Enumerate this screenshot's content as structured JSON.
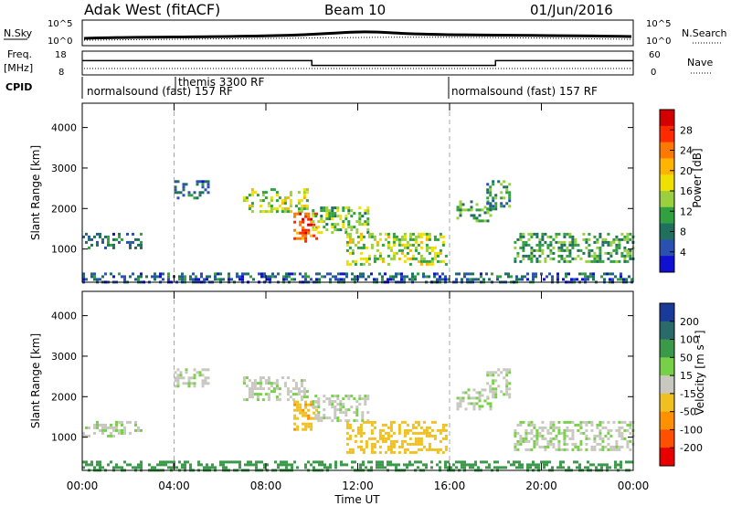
{
  "chart_data": {
    "type": "heatmap",
    "header": {
      "title": "Adak West (fitACF)",
      "beam": "Beam 10",
      "date": "01/Jun/2016"
    },
    "status_panels": {
      "nsky_label": "N.Sky",
      "nsky_ticks": [
        "10^5",
        "10^0"
      ],
      "nsearch_label": "N.Search",
      "freq_label": "Freq.",
      "freq_unit": "[MHz]",
      "freq_ticks": [
        "18",
        "8"
      ],
      "nave_label": "Nave",
      "nave_ticks": [
        "60",
        "0"
      ],
      "cpid_label": "CPID",
      "freq_steps": [
        {
          "from": 0.0,
          "to": 10.0,
          "freq": 14.0
        },
        {
          "from": 10.0,
          "to": 18.0,
          "freq": 12.0
        },
        {
          "from": 18.0,
          "to": 24.0,
          "freq": 14.0
        }
      ],
      "cpid_segments": [
        {
          "from": 0.0,
          "to": 16.0,
          "label": "normalsound (fast) 157 RF"
        },
        {
          "from": 4.0,
          "to": 16.0,
          "label": "themis 3300 RF"
        },
        {
          "from": 16.0,
          "to": 24.0,
          "label": "normalsound (fast) 157 RF"
        }
      ]
    },
    "x": {
      "label": "Time UT",
      "range": [
        0,
        24
      ],
      "tick_values": [
        0,
        4,
        8,
        12,
        16,
        20,
        24
      ],
      "tick_labels": [
        "00:00",
        "04:00",
        "08:00",
        "12:00",
        "16:00",
        "20:00",
        "00:00"
      ],
      "mode_boundaries": [
        4,
        16
      ]
    },
    "panels": [
      {
        "name": "power",
        "ylabel": "Slant Range [km]",
        "ylim": [
          180,
          4600
        ],
        "yticks": [
          1000,
          2000,
          3000,
          4000
        ],
        "colorbar_label": "Power [dB]",
        "colorbar_ticks": [
          "28",
          "24",
          "20",
          "16",
          "12",
          "8",
          "4"
        ],
        "colorbar_colors": [
          "#d40000",
          "#ff2a00",
          "#ff7800",
          "#ffb400",
          "#f0e000",
          "#9ad040",
          "#30a040",
          "#207060",
          "#2a50b0",
          "#1010d0"
        ]
      },
      {
        "name": "velocity",
        "ylabel": "Slant Range [km]",
        "ylim": [
          180,
          4600
        ],
        "yticks": [
          1000,
          2000,
          3000,
          4000
        ],
        "colorbar_label": "Velocity [m s⁻¹]",
        "colorbar_ticks": [
          "200",
          "100",
          "50",
          "15",
          "-15",
          "-50",
          "-100",
          "-200"
        ],
        "colorbar_colors": [
          "#1a3a9a",
          "#2a6a6a",
          "#3a9a4a",
          "#78d048",
          "#c8c8c0",
          "#f0c020",
          "#ff9000",
          "#ff5000",
          "#e80000"
        ]
      }
    ],
    "echo_regions": [
      {
        "t0": 0.0,
        "t1": 2.6,
        "r0": 1050,
        "r1": 1400,
        "power": 6,
        "velocity": 0
      },
      {
        "t0": 4.0,
        "t1": 5.5,
        "r0": 2250,
        "r1": 2700,
        "power": 5,
        "velocity": 0
      },
      {
        "t0": 7.0,
        "t1": 9.8,
        "r0": 1900,
        "r1": 2500,
        "power": 14,
        "velocity": 0
      },
      {
        "t0": 9.2,
        "t1": 10.2,
        "r0": 1200,
        "r1": 1900,
        "power": 26,
        "velocity": -40
      },
      {
        "t0": 10.0,
        "t1": 12.5,
        "r0": 1400,
        "r1": 2050,
        "power": 12,
        "velocity": 0
      },
      {
        "t0": 11.5,
        "t1": 15.9,
        "r0": 600,
        "r1": 1400,
        "power": 14,
        "velocity": -35
      },
      {
        "t0": 16.3,
        "t1": 17.8,
        "r0": 1700,
        "r1": 2200,
        "power": 10,
        "velocity": 0
      },
      {
        "t0": 17.6,
        "t1": 18.6,
        "r0": 2000,
        "r1": 2700,
        "power": 8,
        "velocity": 0
      },
      {
        "t0": 18.8,
        "t1": 24.0,
        "r0": 700,
        "r1": 1400,
        "power": 10,
        "velocity": 0
      },
      {
        "t0": 0.0,
        "t1": 24.0,
        "r0": 180,
        "r1": 420,
        "power": 5,
        "velocity": 30
      }
    ]
  }
}
